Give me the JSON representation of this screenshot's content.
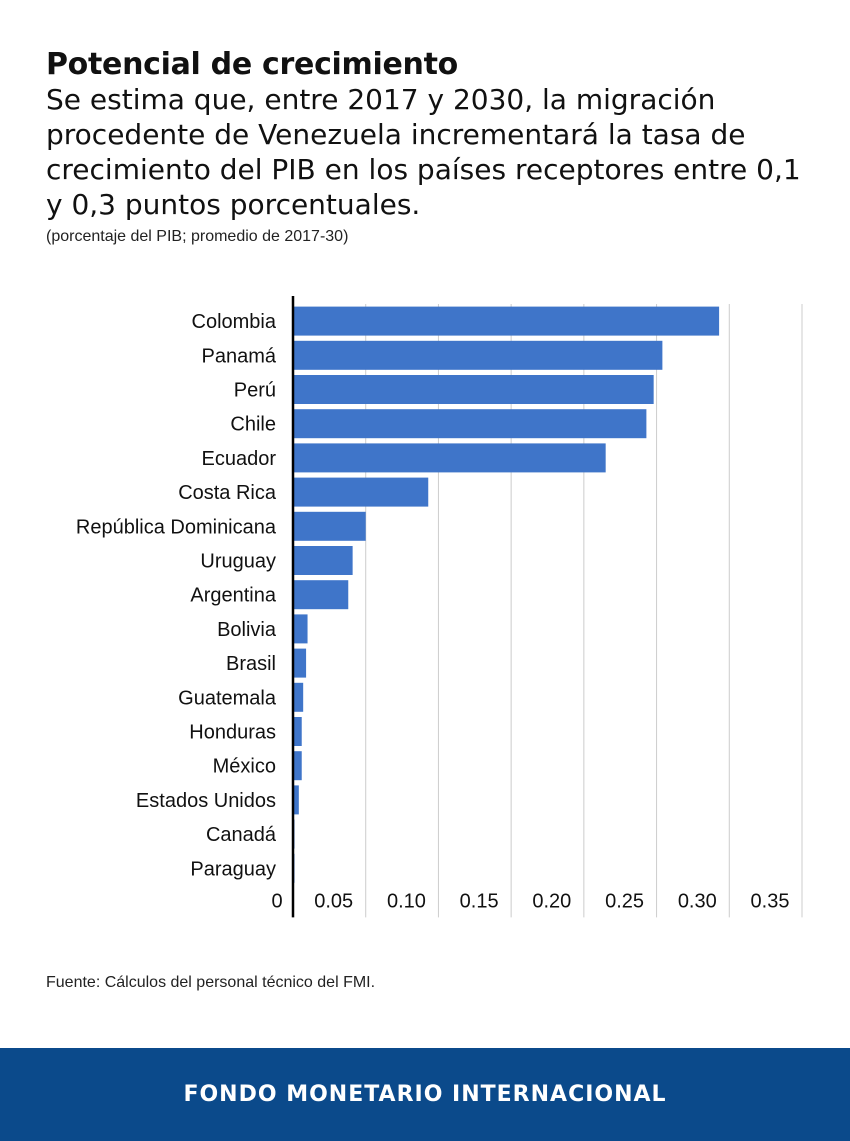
{
  "header": {
    "title": "Potencial de crecimiento",
    "subtitle": "Se estima que, entre 2017 y 2030, la migración procedente de Venezuela incrementará la tasa de crecimiento del PIB en los países receptores entre 0,1 y 0,3 puntos porcentuales.",
    "note": "(porcentaje del PIB; promedio de 2017-30)"
  },
  "source": "Fuente: Cálculos del personal técnico del FMI.",
  "footer": {
    "org": "FONDO MONETARIO INTERNACIONAL"
  },
  "colors": {
    "bar": "#3f75c9",
    "footer": "#0b4a8b",
    "grid": "#cccccc"
  },
  "chart_data": {
    "type": "bar",
    "orientation": "horizontal",
    "categories": [
      "Colombia",
      "Panamá",
      "Perú",
      "Chile",
      "Ecuador",
      "Costa Rica",
      "República Dominicana",
      "Uruguay",
      "Argentina",
      "Bolivia",
      "Brasil",
      "Guatemala",
      "Honduras",
      "México",
      "Estados Unidos",
      "Canadá",
      "Paraguay"
    ],
    "values": [
      0.293,
      0.254,
      0.248,
      0.243,
      0.215,
      0.093,
      0.05,
      0.041,
      0.038,
      0.01,
      0.009,
      0.007,
      0.006,
      0.006,
      0.004,
      0.001,
      0.001
    ],
    "xlim": [
      0,
      0.35
    ],
    "xticks": [
      0,
      0.05,
      0.1,
      0.15,
      0.2,
      0.25,
      0.3,
      0.35
    ],
    "xtick_labels": [
      "0",
      "0.05",
      "0.10",
      "0.15",
      "0.20",
      "0.25",
      "0.30",
      "0.35"
    ],
    "grid": true
  }
}
